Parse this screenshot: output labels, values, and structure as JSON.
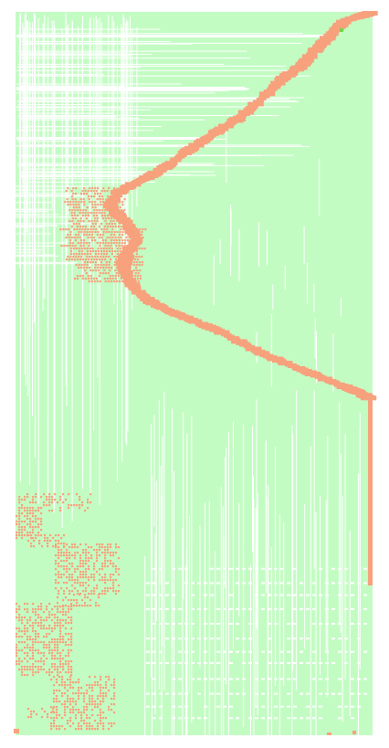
{
  "visualization": {
    "kind": "dense-matrix-heatmap",
    "palette": {
      "background": "#ffffff",
      "cell_fill": "#c3fcc3",
      "highlight": "#f7a17d",
      "highlight_dark": "#f59271",
      "marker": "#7ad24a"
    },
    "text_labels": []
  }
}
